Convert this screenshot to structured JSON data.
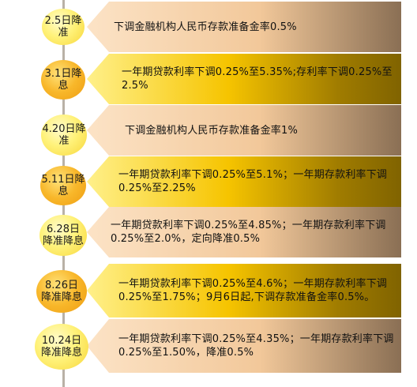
{
  "events": [
    {
      "date": "2.5日降准",
      "text": "下调金融机构人民币存款准备金率0.5%"
    },
    {
      "date": "3.1日降息",
      "text": "一年期贷款利率下调0.25%至5.35%;存利率下调0.25%至2.5%"
    },
    {
      "date": "4.20日降准",
      "text": "下调金融机构人民币存款准备金率1%"
    },
    {
      "date": "5.11日降息",
      "text": "一年期贷款利率下调0.25%至5.1%；一年期存款利率下调0.25%至2.25%"
    },
    {
      "date": "6.28日\n降准降息",
      "text": "一年期贷款利率下调0.25%至4.85%；一年期存款利率下调0.25%至2.0%，定向降准0.5%"
    },
    {
      "date": "8.26日\n降准降息",
      "text": "一年期贷款利率下调0.25%至4.6%；一年期存款利率下调0.25%至1.75%；9月6日起,下调存款准备金率0.5%。"
    },
    {
      "date": "10.24日\n降准降息",
      "text": "一年期贷款利率下调0.25%至4.35%；一年期存款利率下调0.25%至1.50%，降准0.5%"
    }
  ],
  "colors": {
    "peach_bubble": "#f2c89a",
    "gold_bubble": "#f6c400",
    "light_circle": "#fff27a",
    "dark_circle": "#f8b72a",
    "timeline": "#b9b1a6"
  }
}
